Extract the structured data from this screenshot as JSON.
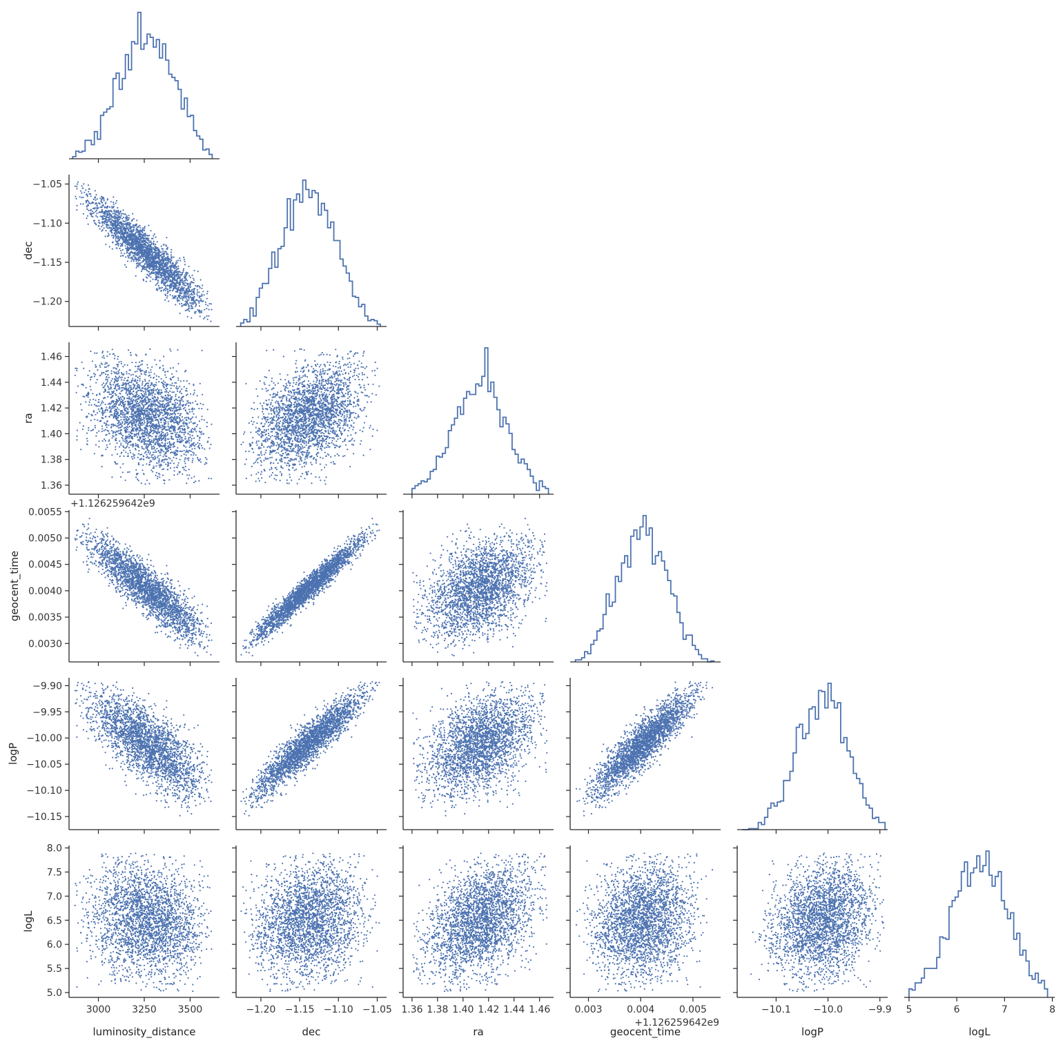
{
  "colors": {
    "accent": "#4C72B0",
    "axis": "#262626",
    "text": "#333333"
  },
  "chart_data": {
    "type": "scatter",
    "kind": "corner-pairplot",
    "grid": false,
    "parameters": [
      {
        "name": "luminosity_distance",
        "label": "luminosity_distance",
        "range": [
          2840,
          3660
        ],
        "ticks": [
          {
            "v": 3000,
            "label": "3000"
          },
          {
            "v": 3250,
            "label": "3250"
          },
          {
            "v": 3500,
            "label": "3500"
          }
        ],
        "mean": 3260,
        "sd": 155,
        "min": 2860,
        "max": 3620
      },
      {
        "name": "dec",
        "label": "dec",
        "range": [
          -1.232,
          -1.038
        ],
        "ticks": [
          {
            "v": -1.2,
            "label": "−1.20"
          },
          {
            "v": -1.15,
            "label": "−1.15"
          },
          {
            "v": -1.1,
            "label": "−1.10"
          },
          {
            "v": -1.05,
            "label": "−1.05"
          }
        ],
        "mean": -1.138,
        "sd": 0.036,
        "min": -1.226,
        "max": -1.046
      },
      {
        "name": "ra",
        "label": "ra",
        "range": [
          1.353,
          1.471
        ],
        "ticks": [
          {
            "v": 1.36,
            "label": "1.36"
          },
          {
            "v": 1.38,
            "label": "1.38"
          },
          {
            "v": 1.4,
            "label": "1.40"
          },
          {
            "v": 1.42,
            "label": "1.42"
          },
          {
            "v": 1.44,
            "label": "1.44"
          },
          {
            "v": 1.46,
            "label": "1.46"
          }
        ],
        "mean": 1.414,
        "sd": 0.021,
        "min": 1.36,
        "max": 1.467
      },
      {
        "name": "geocent_time",
        "label": "geocent_time",
        "range": [
          0.00265,
          0.00553
        ],
        "ticks": [
          {
            "v": 0.003,
            "label": "0.0030"
          },
          {
            "v": 0.0035,
            "label": "0.0035"
          },
          {
            "v": 0.004,
            "label": "0.0040"
          },
          {
            "v": 0.0045,
            "label": "0.0045"
          },
          {
            "v": 0.005,
            "label": "0.0050"
          },
          {
            "v": 0.0055,
            "label": "0.0055"
          }
        ],
        "xticks": [
          {
            "v": 0.003,
            "label": "0.003"
          },
          {
            "v": 0.004,
            "label": "0.004"
          },
          {
            "v": 0.005,
            "label": "0.005"
          }
        ],
        "offset": "+1.126259642e9",
        "mean": 0.00405,
        "sd": 0.00049,
        "min": 0.00275,
        "max": 0.0054
      },
      {
        "name": "logP",
        "label": "logP",
        "range": [
          -10.175,
          -9.885
        ],
        "ticks": [
          {
            "v": -10.15,
            "label": "−10.15"
          },
          {
            "v": -10.1,
            "label": "−10.10"
          },
          {
            "v": -10.05,
            "label": "−10.05"
          },
          {
            "v": -10.0,
            "label": "−10.00"
          },
          {
            "v": -9.95,
            "label": "−9.95"
          },
          {
            "v": -9.9,
            "label": "−9.90"
          }
        ],
        "xticks": [
          {
            "v": -10.1,
            "label": "−10.1"
          },
          {
            "v": -10.0,
            "label": "−10.0"
          },
          {
            "v": -9.9,
            "label": "−9.9"
          }
        ],
        "mean": -10.01,
        "sd": 0.05,
        "min": -10.165,
        "max": -9.89
      },
      {
        "name": "logL",
        "label": "logL",
        "range": [
          4.9,
          8.05
        ],
        "ticks": [
          {
            "v": 5.0,
            "label": "5.0"
          },
          {
            "v": 5.5,
            "label": "5.5"
          },
          {
            "v": 6.0,
            "label": "6.0"
          },
          {
            "v": 6.5,
            "label": "6.5"
          },
          {
            "v": 7.0,
            "label": "7.0"
          },
          {
            "v": 7.5,
            "label": "7.5"
          },
          {
            "v": 8.0,
            "label": "8.0"
          }
        ],
        "xticks": [
          {
            "v": 5,
            "label": "5"
          },
          {
            "v": 6,
            "label": "6"
          },
          {
            "v": 7,
            "label": "7"
          },
          {
            "v": 8,
            "label": "8"
          }
        ],
        "mean": 6.5,
        "sd": 0.6,
        "min": 5.0,
        "max": 7.9
      }
    ],
    "correlations": [
      [
        1.0,
        -0.93,
        -0.35,
        -0.89,
        -0.74,
        -0.12
      ],
      [
        -0.93,
        1.0,
        0.4,
        0.97,
        0.93,
        0.15
      ],
      [
        -0.35,
        0.4,
        1.0,
        0.4,
        0.4,
        0.42
      ],
      [
        -0.89,
        0.97,
        0.4,
        1.0,
        0.9,
        0.15
      ],
      [
        -0.74,
        0.93,
        0.4,
        0.9,
        1.0,
        0.2
      ],
      [
        -0.12,
        0.15,
        0.42,
        0.15,
        0.2,
        1.0
      ]
    ],
    "n_samples_per_panel": 2600,
    "hist_bins": 45,
    "marker_color": "#4C72B0"
  }
}
